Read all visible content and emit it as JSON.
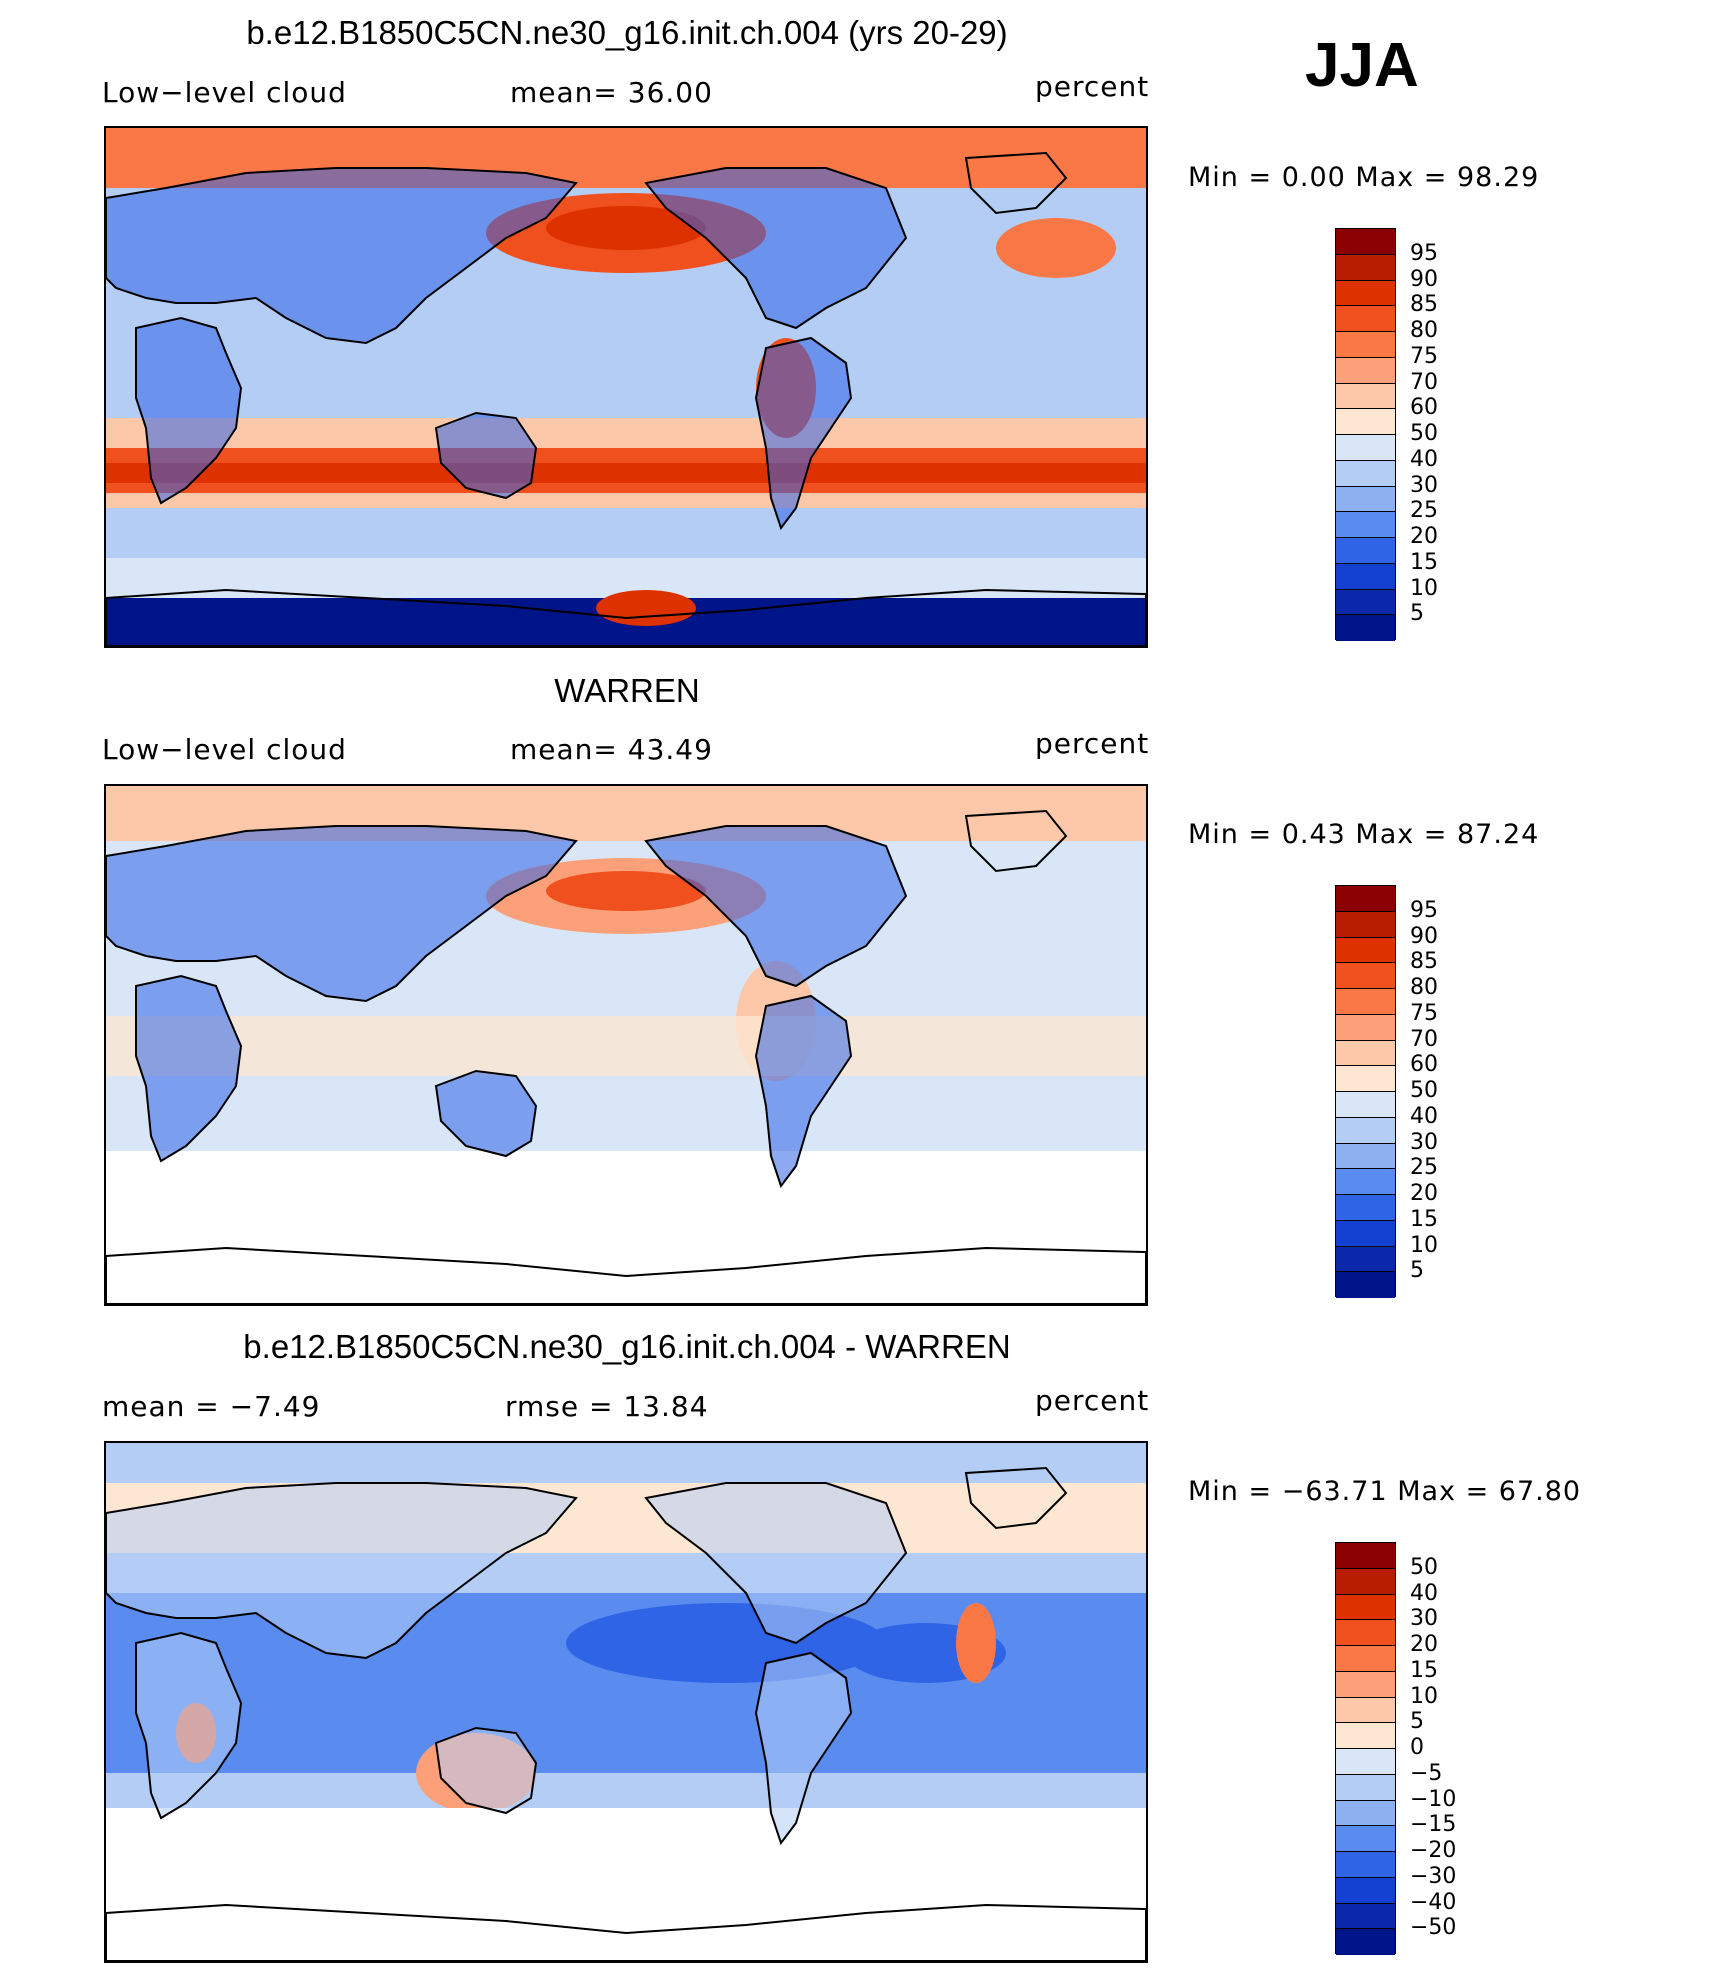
{
  "season": "JJA",
  "panels": [
    {
      "title": "b.e12.B1850C5CN.ne30_g16.init.ch.004 (yrs 20-29)",
      "left_label": "Low−level cloud",
      "center_label": "mean=   36.00",
      "right_label": "percent",
      "minmax": "Min =    0.00 Max =   98.29",
      "colorbar": {
        "levels": [
          "95",
          "90",
          "85",
          "80",
          "75",
          "70",
          "60",
          "50",
          "40",
          "30",
          "25",
          "20",
          "15",
          "10",
          "5"
        ],
        "colors": [
          "#8b0000",
          "#b81c00",
          "#dd3200",
          "#f0501e",
          "#fa7846",
          "#fca07a",
          "#fdc8aa",
          "#fde6d2",
          "#d8e6f8",
          "#b4cdf5",
          "#8cb0f0",
          "#5a8cf0",
          "#2f64e6",
          "#1440d2",
          "#0c28aa",
          "#00148a"
        ]
      },
      "map_style": "model"
    },
    {
      "title": "WARREN",
      "left_label": "Low−level cloud",
      "center_label": "mean=   43.49",
      "right_label": "percent",
      "minmax": "Min =    0.43 Max =   87.24",
      "colorbar": {
        "levels": [
          "95",
          "90",
          "85",
          "80",
          "75",
          "70",
          "60",
          "50",
          "40",
          "30",
          "25",
          "20",
          "15",
          "10",
          "5"
        ],
        "colors": [
          "#8b0000",
          "#b81c00",
          "#dd3200",
          "#f0501e",
          "#fa7846",
          "#fca07a",
          "#fdc8aa",
          "#fde6d2",
          "#d8e6f8",
          "#b4cdf5",
          "#8cb0f0",
          "#5a8cf0",
          "#2f64e6",
          "#1440d2",
          "#0c28aa",
          "#00148a"
        ]
      },
      "map_style": "obs"
    },
    {
      "title": "b.e12.B1850C5CN.ne30_g16.init.ch.004 - WARREN",
      "left_label": "mean =   −7.49",
      "center_label": "rmse =   13.84",
      "right_label": "percent",
      "minmax": "Min = −63.71  Max =   67.80",
      "colorbar": {
        "levels": [
          "50",
          "40",
          "30",
          "20",
          "15",
          "10",
          "5",
          "0",
          "−5",
          "−10",
          "−15",
          "−20",
          "−30",
          "−40",
          "−50"
        ],
        "colors": [
          "#8b0000",
          "#b81c00",
          "#dd3200",
          "#f0501e",
          "#fa7846",
          "#fca07a",
          "#fdc8aa",
          "#fde6d2",
          "#d8e6f8",
          "#b4cdf5",
          "#8cb0f0",
          "#5a8cf0",
          "#2f64e6",
          "#1440d2",
          "#0c28aa",
          "#00148a"
        ]
      },
      "map_style": "diff"
    }
  ]
}
